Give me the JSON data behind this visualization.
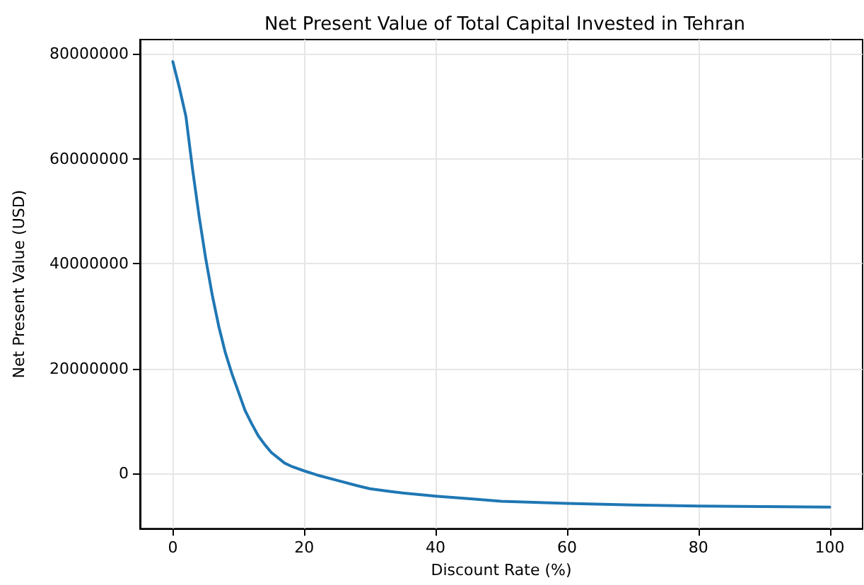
{
  "chart_data": {
    "type": "line",
    "title": "Net Present Value of Total Capital Invested in Tehran",
    "xlabel": "Discount Rate (%)",
    "ylabel": "Net Present Value (USD)",
    "x": [
      0,
      1,
      2,
      3,
      4,
      5,
      6,
      7,
      8,
      9,
      10,
      11,
      12,
      13,
      14,
      15,
      16,
      17,
      18,
      20,
      22,
      25,
      28,
      30,
      33,
      35,
      40,
      45,
      50,
      55,
      60,
      70,
      80,
      90,
      100
    ],
    "series": [
      {
        "color": "#1f77b4",
        "values": [
          78500000,
          73500000,
          68000000,
          58000000,
          49000000,
          41000000,
          34000000,
          28000000,
          23000000,
          19000000,
          15500000,
          12000000,
          9500000,
          7200000,
          5500000,
          4000000,
          3000000,
          2000000,
          1400000,
          500000,
          -300000,
          -1300000,
          -2300000,
          -2900000,
          -3400000,
          -3700000,
          -4300000,
          -4800000,
          -5300000,
          -5500000,
          -5700000,
          -6000000,
          -6200000,
          -6300000,
          -6400000
        ]
      }
    ],
    "xlim": [
      -5,
      105
    ],
    "xticks": [
      0,
      20,
      40,
      60,
      80,
      100
    ],
    "ylim": [
      -10500000,
      82700000
    ],
    "yticks": [
      0,
      20000000,
      40000000,
      60000000,
      80000000
    ],
    "grid": true,
    "marker": "none",
    "line_style": "solid"
  }
}
